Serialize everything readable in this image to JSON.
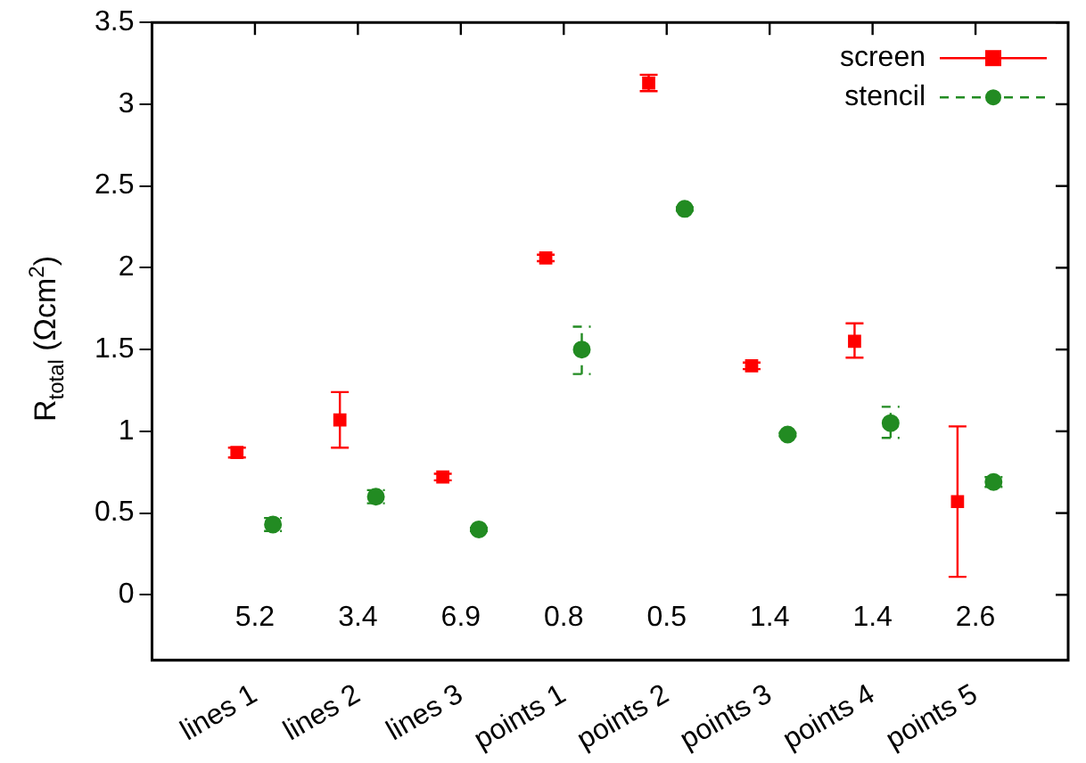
{
  "chart_data": {
    "type": "scatter",
    "ylabel": "R$_{total}$ (Ωcm$^{2}$)",
    "categories": [
      "lines 1",
      "lines 2",
      "lines 3",
      "points 1",
      "points 2",
      "points 3",
      "points 4",
      "points 5"
    ],
    "series": [
      {
        "name": "screen",
        "color": "#ff0000",
        "marker": "square",
        "line_style": "solid",
        "values": [
          0.87,
          1.07,
          0.72,
          2.06,
          3.13,
          1.4,
          1.55,
          0.57
        ],
        "errors": [
          0.03,
          [
            0.9,
            1.24
          ],
          0.02,
          0.02,
          0.05,
          0.02,
          [
            1.45,
            1.66
          ],
          [
            0.11,
            1.03
          ]
        ]
      },
      {
        "name": "stencil",
        "color": "#228b22",
        "marker": "circle",
        "line_style": "dashed",
        "values": [
          0.43,
          0.6,
          0.4,
          1.5,
          2.36,
          0.98,
          1.05,
          0.69
        ],
        "errors": [
          0.04,
          0.04,
          0.01,
          [
            1.35,
            1.64
          ],
          0.01,
          0.01,
          [
            0.96,
            1.15
          ],
          0.03
        ]
      }
    ],
    "annotations": [
      "5.2",
      "3.4",
      "6.9",
      "0.8",
      "0.5",
      "1.4",
      "1.4",
      "2.6"
    ],
    "ylim": [
      -0.4,
      3.5
    ],
    "yticks": [
      0,
      0.5,
      1,
      1.5,
      2,
      2.5,
      3,
      3.5
    ],
    "grid": false,
    "legend": "top right"
  }
}
